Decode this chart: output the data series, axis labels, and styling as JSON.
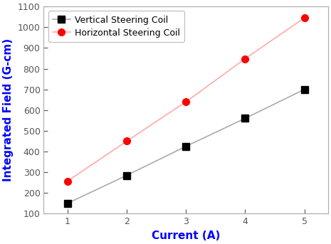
{
  "vertical_x": [
    1,
    2,
    3,
    4,
    5
  ],
  "vertical_y": [
    150,
    285,
    425,
    560,
    700
  ],
  "horizontal_x": [
    1,
    2,
    3,
    4,
    5
  ],
  "horizontal_y": [
    257,
    450,
    640,
    848,
    1045
  ],
  "vertical_line_color": "#aaaaaa",
  "horizontal_line_color": "#ffaaaa",
  "marker_color_vertical": "#000000",
  "marker_color_horizontal": "#ff0000",
  "xlabel": "Current (A)",
  "ylabel": "Integrated Field (G-cm)",
  "xlabel_color": "#0000ff",
  "ylabel_color": "#0000ff",
  "legend_labels": [
    "Vertical Steering Coil",
    "Horizontal Steering Coil"
  ],
  "xlim": [
    0.6,
    5.4
  ],
  "ylim": [
    100,
    1100
  ],
  "yticks": [
    100,
    200,
    300,
    400,
    500,
    600,
    700,
    800,
    900,
    1000,
    1100
  ],
  "xticks": [
    1,
    2,
    3,
    4,
    5
  ],
  "axis_color": "#aaaaaa",
  "tick_color": "#555555",
  "background_color": "#ffffff",
  "legend_marker_size": 7,
  "line_width": 1.2,
  "marker_size_plot": 7
}
